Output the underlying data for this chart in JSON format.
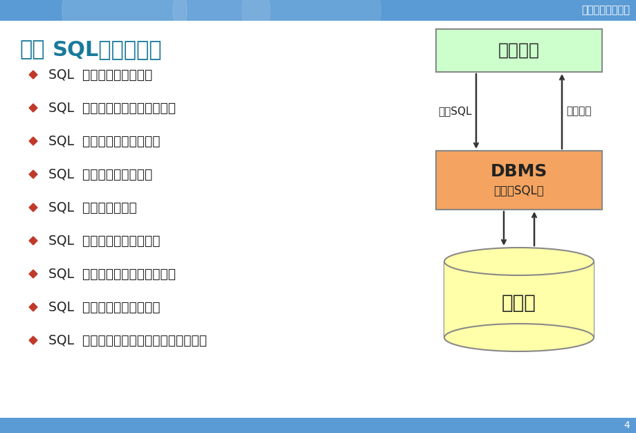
{
  "slide_bg": "#ffffff",
  "header_color": "#5b9bd5",
  "header_text": "数据库原理及应用",
  "header_text_color": "#ffffff",
  "title_prefix": "四、",
  "title_bold": "SQL能做什么？",
  "title_color": "#1a7a9a",
  "bullet_color": "#c0392b",
  "bullet_text_color": "#222222",
  "bullets": [
    "SQL  可从数据库取回数据",
    "SQL  可在数据库中插入新的纪录",
    "SQL  可更新数据库中的数据",
    "SQL  可从数据库删除记录",
    "SQL  可创建新数据库",
    "SQL  可在数据库中创建新表",
    "SQL  可在数据库中创建存储过程",
    "SQL  可在数据库中创建视图",
    "SQL  可以设置表、存储过程和视图的权限"
  ],
  "box_app_color": "#ccffcc",
  "box_app_border": "#888888",
  "box_app_text": "应用程序",
  "box_dbms_color": "#f4a460",
  "box_dbms_border": "#888888",
  "box_dbms_text": "DBMS",
  "box_dbms_subtext": "（执行SQL）",
  "db_color": "#ffffaa",
  "db_border": "#888888",
  "db_text": "数据库",
  "label_submit": "提交SQL",
  "label_return": "返回结果",
  "arrow_color": "#333333",
  "footer_color": "#5b9bd5",
  "page_number": "4"
}
